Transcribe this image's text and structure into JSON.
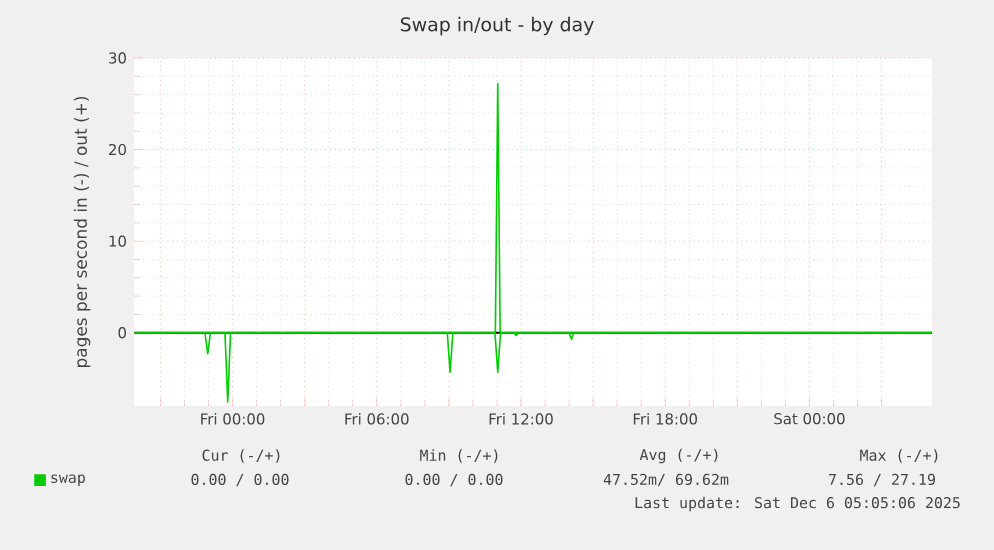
{
  "chart_data": {
    "type": "line",
    "title": "Swap in/out - by day",
    "ylabel": "pages per second in (-) / out (+)",
    "series": [
      {
        "name": "swap",
        "color": "#00cc00",
        "x": [
          "2025-12-04T19:54",
          "2025-12-05T10:56",
          "2025-12-05T11:02",
          "2025-12-05T11:08",
          "2025-12-06T05:05"
        ],
        "values": [
          0,
          0,
          27.19,
          0,
          0
        ]
      },
      {
        "color": "#00cc00",
        "x": [
          "2025-12-04T19:54",
          "2025-12-04T22:51",
          "2025-12-04T22:58",
          "2025-12-04T23:05",
          "2025-12-04T23:41",
          "2025-12-04T23:48",
          "2025-12-04T23:55",
          "2025-12-05T08:56",
          "2025-12-05T09:03",
          "2025-12-05T09:10",
          "2025-12-05T10:55",
          "2025-12-05T11:02",
          "2025-12-05T11:09",
          "2025-12-05T11:42",
          "2025-12-05T11:48",
          "2025-12-05T11:54",
          "2025-12-05T14:00",
          "2025-12-05T14:06",
          "2025-12-05T14:12",
          "2025-12-06T05:05"
        ],
        "values": [
          0,
          0,
          -2.3,
          0,
          0,
          -7.56,
          0,
          0,
          -4.3,
          0,
          0,
          -4.3,
          0,
          0,
          -0.3,
          0,
          0,
          -0.7,
          0,
          0
        ]
      }
    ],
    "xlim": [
      "2025-12-04T19:54",
      "2025-12-06T05:06"
    ],
    "ylim": [
      -8,
      30
    ],
    "xticks": [
      {
        "value": "2025-12-04T21:00",
        "label": null
      },
      {
        "value": "2025-12-05T00:00",
        "label": "Fri 00:00"
      },
      {
        "value": "2025-12-05T03:00",
        "label": null
      },
      {
        "value": "2025-12-05T06:00",
        "label": "Fri 06:00"
      },
      {
        "value": "2025-12-05T09:00",
        "label": null
      },
      {
        "value": "2025-12-05T12:00",
        "label": "Fri 12:00"
      },
      {
        "value": "2025-12-05T15:00",
        "label": null
      },
      {
        "value": "2025-12-05T18:00",
        "label": "Fri 18:00"
      },
      {
        "value": "2025-12-05T21:00",
        "label": null
      },
      {
        "value": "2025-12-06T00:00",
        "label": "Sat 00:00"
      },
      {
        "value": "2025-12-06T03:00",
        "label": null
      }
    ],
    "yticks": [
      0,
      10,
      20,
      30
    ],
    "ref_lines": [
      {
        "axis": "y",
        "value": 0,
        "color": "#000000"
      }
    ],
    "grid": true,
    "legend": "bottom left",
    "marker": "none",
    "line_style": "solid",
    "annotations": [
      "Cur (-/+)",
      "Min (-/+)",
      "Avg (-/+)",
      "Max (-/+)",
      "0.00 / 0.00",
      "0.00 / 0.00",
      "47.52m/ 69.62m",
      "7.56 / 27.19",
      "Last update: Sat Dec 6 05:05:06 2025"
    ]
  }
}
